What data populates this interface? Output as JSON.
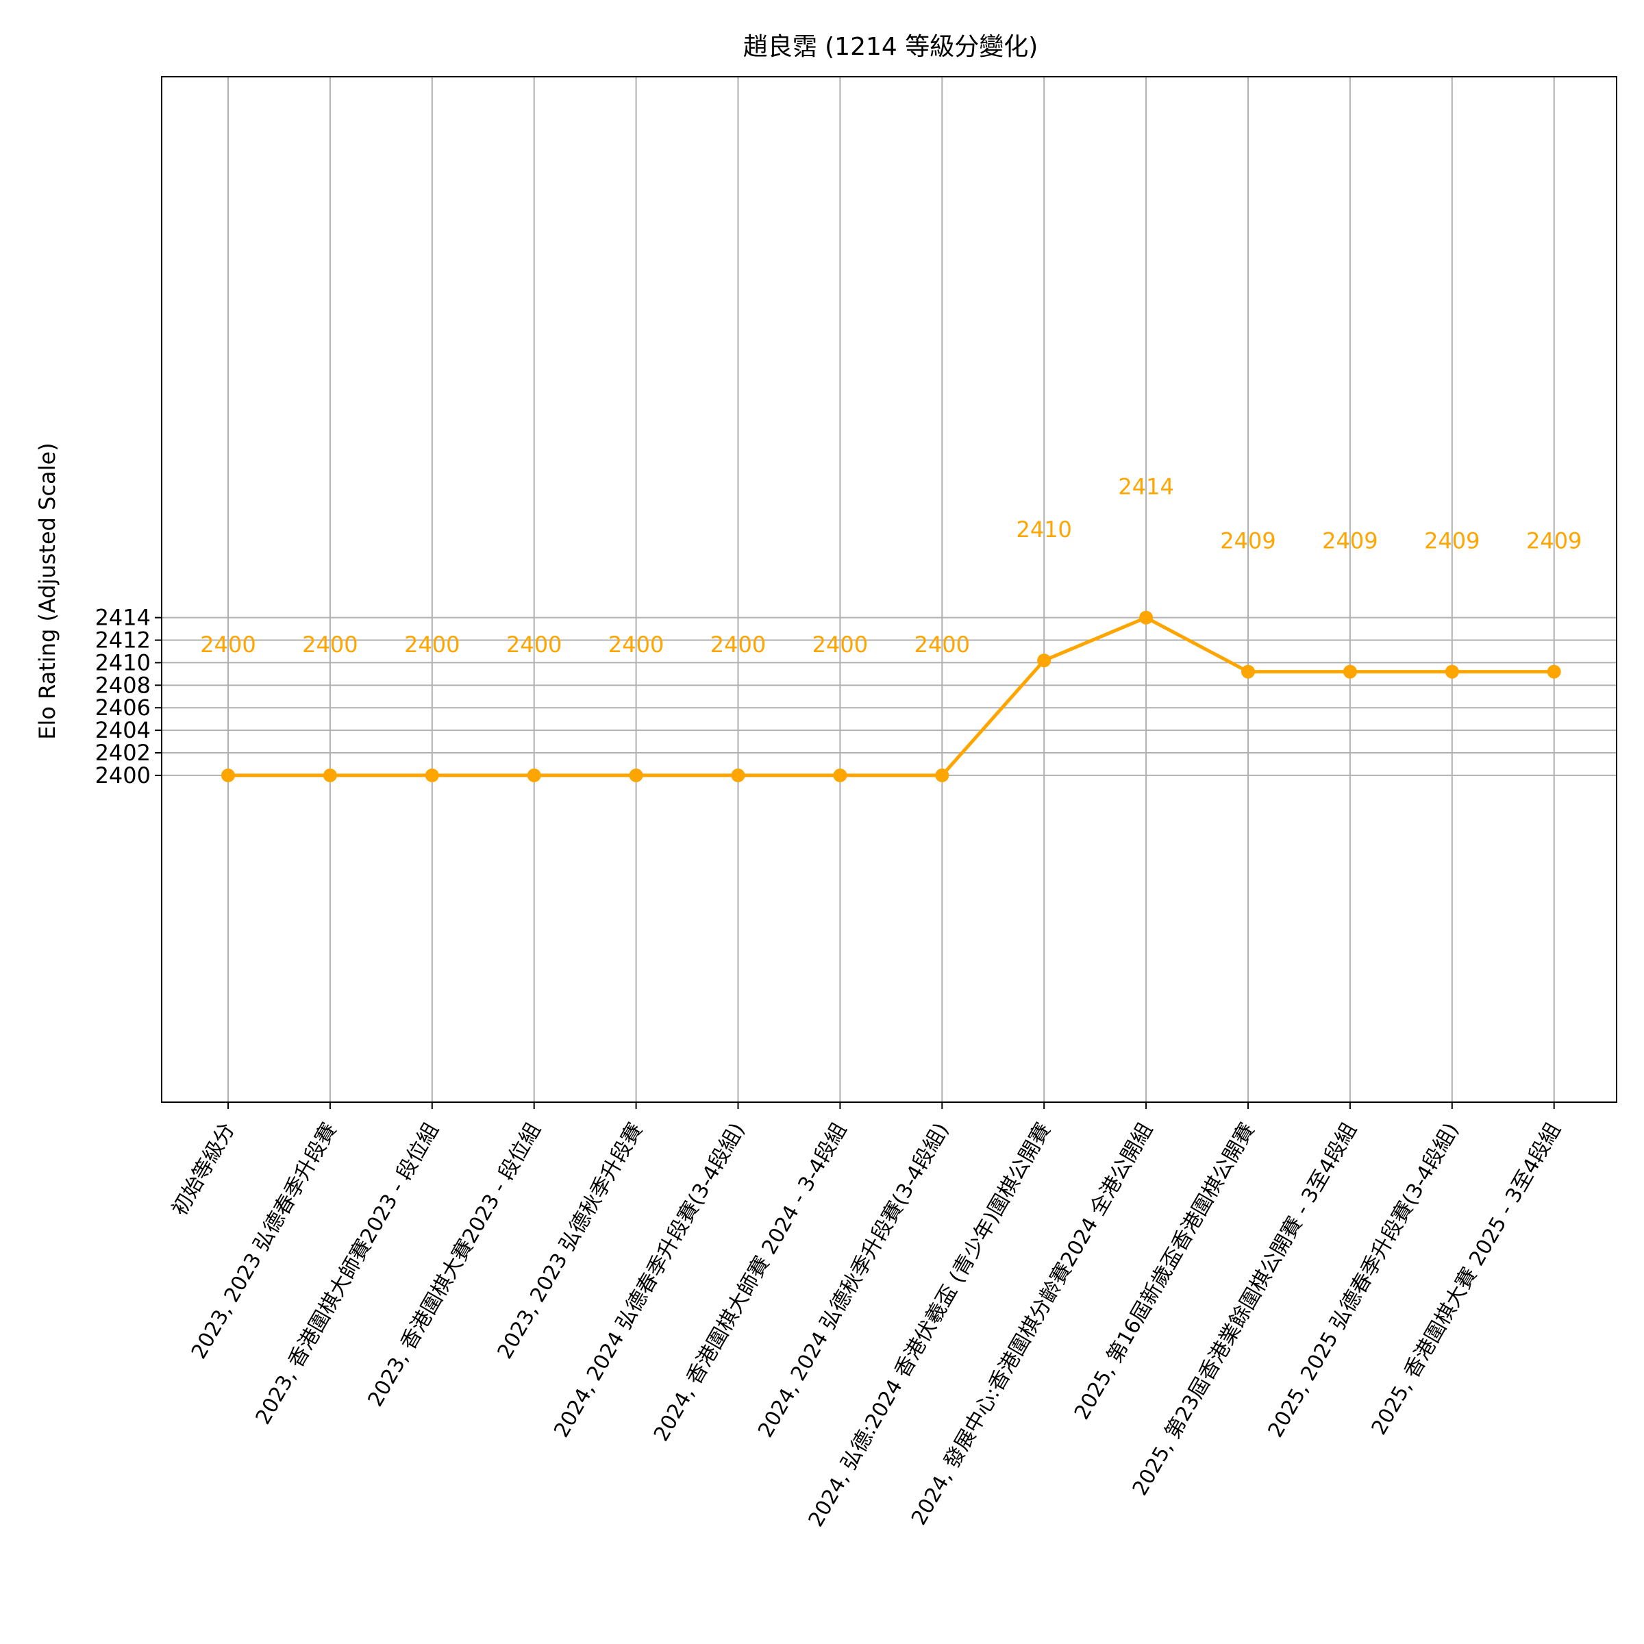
{
  "chart_data": {
    "type": "line",
    "title": "趙良霑 (1214 等級分變化)",
    "xlabel": "",
    "ylabel": "Elo Rating (Adjusted Scale)",
    "categories": [
      "初始等級分",
      "2023, 2023 弘德春季升段賽",
      "2023, 香港圍棋大師賽2023 - 段位組",
      "2023, 香港圍棋大賽2023 - 段位組",
      "2023, 2023 弘德秋季升段賽",
      "2024, 2024 弘德春季升段賽(3-4段組)",
      "2024, 香港圍棋大師賽 2024 - 3-4段組",
      "2024, 2024 弘德秋季升段賽(3-4段組)",
      "2024, 弘德:2024 香港伏羲盃 (青少年)圍棋公開賽",
      "2024, 發展中心:香港圍棋分齡賽2024 全港公開組",
      "2025, 第16屆新歲盃香港圍棋公開賽",
      "2025, 第23屆香港業餘圍棋公開賽 - 3至4段組",
      "2025, 2025 弘德春季升段賽(3-4段組)",
      "2025, 香港圍棋大賽 2025 - 3至4段組"
    ],
    "values": [
      2400,
      2400,
      2400,
      2400,
      2400,
      2400,
      2400,
      2400,
      2410.2,
      2414,
      2409.2,
      2409.2,
      2409.2,
      2409.2
    ],
    "data_labels": [
      "2400",
      "2400",
      "2400",
      "2400",
      "2400",
      "2400",
      "2400",
      "2400",
      "2410",
      "2414",
      "2409",
      "2409",
      "2409",
      "2409"
    ],
    "yticks": [
      2400,
      2402,
      2404,
      2406,
      2408,
      2410,
      2412,
      2414
    ],
    "ylim": [
      2371,
      2462
    ],
    "grid": true,
    "color": "#FFA500"
  }
}
